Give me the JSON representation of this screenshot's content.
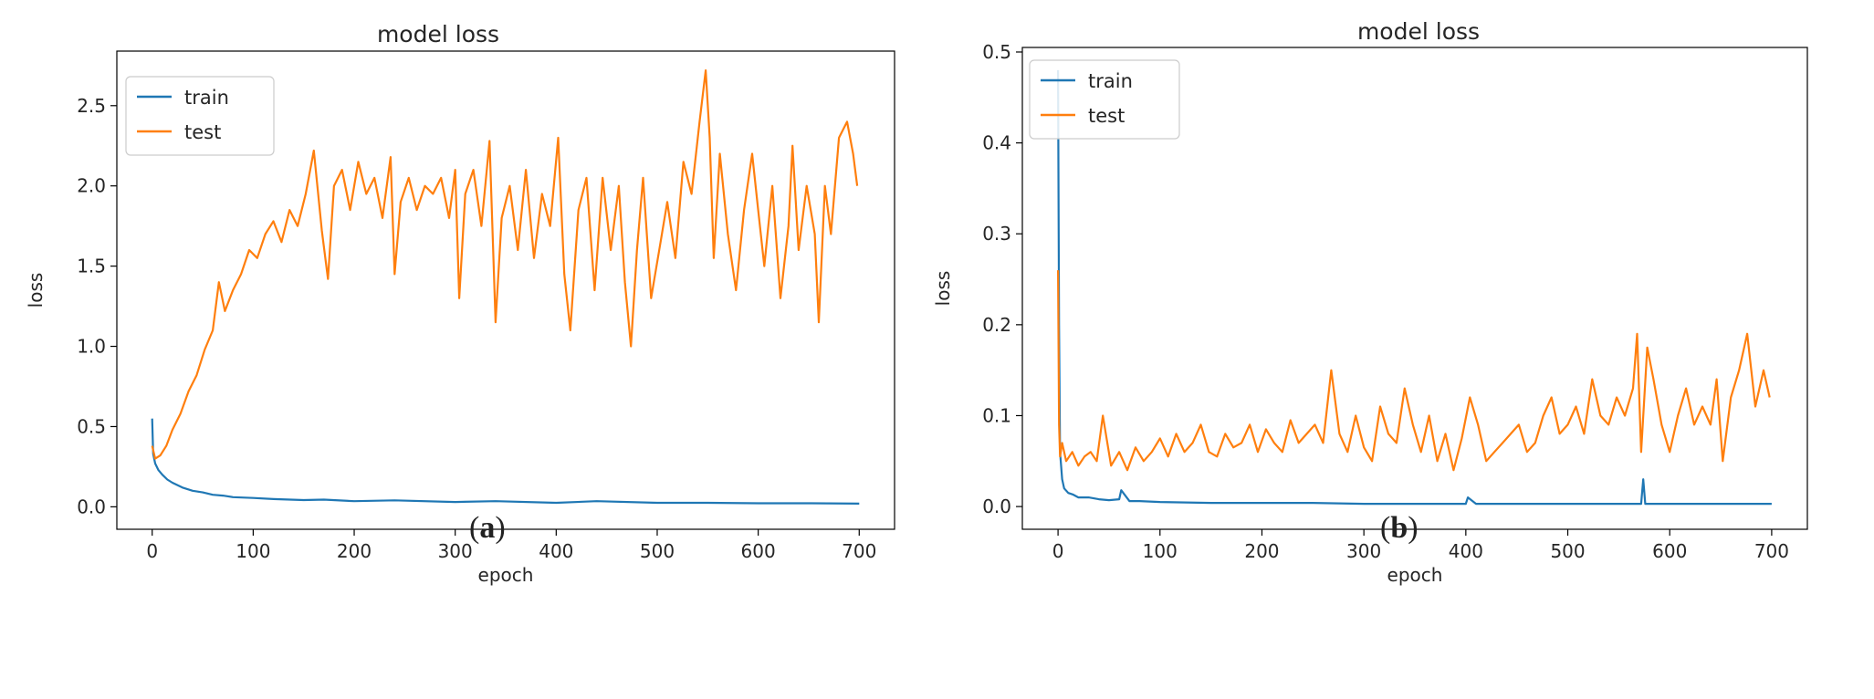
{
  "chart_data": [
    {
      "type": "line",
      "panel_label_prefix": "(",
      "panel_label_letter": "a",
      "panel_label_suffix": ")",
      "title": "model loss",
      "xlabel": "epoch",
      "ylabel": "loss",
      "xlim": [
        -35,
        735
      ],
      "ylim": [
        -0.14,
        2.84
      ],
      "xticks": [
        0,
        100,
        200,
        300,
        400,
        500,
        600,
        700
      ],
      "yticks": [
        0.0,
        0.5,
        1.0,
        1.5,
        2.0,
        2.5
      ],
      "ytick_labels": [
        "0.0",
        "0.5",
        "1.0",
        "1.5",
        "2.0",
        "2.5"
      ],
      "grid": false,
      "legend": "top-left",
      "series": [
        {
          "name": "train",
          "color": "#1f77b4",
          "x": [
            0,
            1,
            3,
            6,
            10,
            15,
            20,
            30,
            40,
            50,
            60,
            70,
            80,
            100,
            120,
            150,
            170,
            200,
            240,
            300,
            340,
            400,
            440,
            500,
            550,
            600,
            650,
            700
          ],
          "y": [
            0.55,
            0.33,
            0.27,
            0.23,
            0.2,
            0.17,
            0.15,
            0.12,
            0.1,
            0.09,
            0.075,
            0.07,
            0.06,
            0.055,
            0.048,
            0.042,
            0.045,
            0.035,
            0.04,
            0.03,
            0.035,
            0.025,
            0.035,
            0.025,
            0.025,
            0.022,
            0.022,
            0.02
          ]
        },
        {
          "name": "test",
          "color": "#ff7f0e",
          "x": [
            0,
            3,
            8,
            14,
            20,
            28,
            36,
            44,
            52,
            60,
            66,
            72,
            80,
            88,
            96,
            104,
            112,
            120,
            128,
            136,
            144,
            152,
            160,
            168,
            174,
            180,
            188,
            196,
            204,
            212,
            220,
            228,
            236,
            240,
            246,
            254,
            262,
            270,
            278,
            286,
            294,
            300,
            304,
            310,
            318,
            326,
            334,
            340,
            346,
            354,
            362,
            370,
            378,
            386,
            394,
            402,
            408,
            414,
            422,
            430,
            438,
            446,
            454,
            462,
            468,
            474,
            480,
            486,
            494,
            502,
            510,
            518,
            526,
            534,
            542,
            548,
            552,
            556,
            562,
            570,
            578,
            586,
            594,
            600,
            606,
            614,
            622,
            630,
            634,
            640,
            648,
            656,
            660,
            666,
            672,
            680,
            688,
            694,
            698
          ],
          "y": [
            0.38,
            0.3,
            0.32,
            0.38,
            0.48,
            0.58,
            0.72,
            0.82,
            0.98,
            1.1,
            1.4,
            1.22,
            1.35,
            1.45,
            1.6,
            1.55,
            1.7,
            1.78,
            1.65,
            1.85,
            1.75,
            1.95,
            2.22,
            1.72,
            1.42,
            2.0,
            2.1,
            1.85,
            2.15,
            1.95,
            2.05,
            1.8,
            2.18,
            1.45,
            1.9,
            2.05,
            1.85,
            2.0,
            1.95,
            2.05,
            1.8,
            2.1,
            1.3,
            1.95,
            2.1,
            1.75,
            2.28,
            1.15,
            1.8,
            2.0,
            1.6,
            2.1,
            1.55,
            1.95,
            1.75,
            2.3,
            1.45,
            1.1,
            1.85,
            2.05,
            1.35,
            2.05,
            1.6,
            2.0,
            1.4,
            1.0,
            1.6,
            2.05,
            1.3,
            1.6,
            1.9,
            1.55,
            2.15,
            1.95,
            2.4,
            2.72,
            2.3,
            1.55,
            2.2,
            1.7,
            1.35,
            1.85,
            2.2,
            1.85,
            1.5,
            2.0,
            1.3,
            1.75,
            2.25,
            1.6,
            2.0,
            1.7,
            1.15,
            2.0,
            1.7,
            2.3,
            2.4,
            2.2,
            2.0
          ]
        }
      ]
    },
    {
      "type": "line",
      "panel_label_prefix": "(",
      "panel_label_letter": "b",
      "panel_label_suffix": ")",
      "title": "model loss",
      "xlabel": "epoch",
      "ylabel": "loss",
      "xlim": [
        -35,
        735
      ],
      "ylim": [
        -0.025,
        0.505
      ],
      "xticks": [
        0,
        100,
        200,
        300,
        400,
        500,
        600,
        700
      ],
      "yticks": [
        0.0,
        0.1,
        0.2,
        0.3,
        0.4,
        0.5
      ],
      "ytick_labels": [
        "0.0",
        "0.1",
        "0.2",
        "0.3",
        "0.4",
        "0.5"
      ],
      "grid": false,
      "legend": "top-left",
      "series": [
        {
          "name": "train",
          "color": "#1f77b4",
          "x": [
            0,
            1,
            2,
            4,
            6,
            10,
            15,
            20,
            30,
            40,
            50,
            60,
            62,
            70,
            80,
            100,
            150,
            200,
            250,
            300,
            350,
            400,
            402,
            410,
            450,
            500,
            550,
            572,
            574,
            576,
            580,
            600,
            650,
            700
          ],
          "y": [
            0.48,
            0.2,
            0.06,
            0.03,
            0.02,
            0.015,
            0.013,
            0.01,
            0.01,
            0.008,
            0.007,
            0.008,
            0.018,
            0.006,
            0.006,
            0.005,
            0.004,
            0.004,
            0.004,
            0.003,
            0.003,
            0.003,
            0.01,
            0.003,
            0.003,
            0.003,
            0.003,
            0.003,
            0.03,
            0.003,
            0.003,
            0.003,
            0.003,
            0.003
          ]
        },
        {
          "name": "test",
          "color": "#ff7f0e",
          "x": [
            0,
            1,
            2,
            4,
            8,
            14,
            20,
            26,
            32,
            38,
            44,
            52,
            60,
            68,
            76,
            84,
            92,
            100,
            108,
            116,
            124,
            132,
            140,
            148,
            156,
            164,
            172,
            180,
            188,
            196,
            204,
            212,
            220,
            228,
            236,
            244,
            252,
            260,
            268,
            276,
            284,
            292,
            300,
            308,
            316,
            324,
            332,
            340,
            348,
            356,
            364,
            372,
            380,
            388,
            396,
            404,
            412,
            420,
            428,
            436,
            444,
            452,
            460,
            468,
            476,
            484,
            492,
            500,
            508,
            516,
            524,
            532,
            540,
            548,
            556,
            564,
            568,
            572,
            578,
            584,
            592,
            600,
            608,
            616,
            624,
            632,
            640,
            646,
            652,
            660,
            668,
            676,
            684,
            692,
            698
          ],
          "y": [
            0.26,
            0.09,
            0.055,
            0.07,
            0.05,
            0.06,
            0.045,
            0.055,
            0.06,
            0.05,
            0.1,
            0.045,
            0.06,
            0.04,
            0.065,
            0.05,
            0.06,
            0.075,
            0.055,
            0.08,
            0.06,
            0.07,
            0.09,
            0.06,
            0.055,
            0.08,
            0.065,
            0.07,
            0.09,
            0.06,
            0.085,
            0.07,
            0.06,
            0.095,
            0.07,
            0.08,
            0.09,
            0.07,
            0.15,
            0.08,
            0.06,
            0.1,
            0.065,
            0.05,
            0.11,
            0.08,
            0.07,
            0.13,
            0.09,
            0.06,
            0.1,
            0.05,
            0.08,
            0.04,
            0.075,
            0.12,
            0.09,
            0.05,
            0.06,
            0.07,
            0.08,
            0.09,
            0.06,
            0.07,
            0.1,
            0.12,
            0.08,
            0.09,
            0.11,
            0.08,
            0.14,
            0.1,
            0.09,
            0.12,
            0.1,
            0.13,
            0.19,
            0.06,
            0.175,
            0.14,
            0.09,
            0.06,
            0.1,
            0.13,
            0.09,
            0.11,
            0.09,
            0.14,
            0.05,
            0.12,
            0.15,
            0.19,
            0.11,
            0.15,
            0.12
          ]
        }
      ]
    }
  ]
}
